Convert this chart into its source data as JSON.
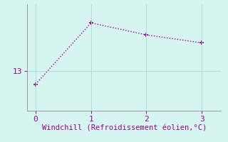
{
  "x": [
    0,
    1,
    2,
    3
  ],
  "y": [
    12.5,
    14.8,
    14.35,
    14.05
  ],
  "line_color": "#990099",
  "marker": "+",
  "marker_size": 5,
  "marker_linewidth": 1.2,
  "line_style": ":",
  "line_width": 1.0,
  "background_color": "#d6f5f0",
  "grid_color": "#b0ddd8",
  "xlabel": "Windchill (Refroidissement éolien,°C)",
  "xlabel_color": "#990099",
  "xlabel_fontsize": 7.5,
  "tick_color": "#990099",
  "tick_fontsize": 8,
  "ytick_labels": [
    "13"
  ],
  "ytick_values": [
    13
  ],
  "xtick_values": [
    0,
    1,
    2,
    3
  ],
  "xlim": [
    -0.15,
    3.35
  ],
  "ylim": [
    11.5,
    15.5
  ]
}
